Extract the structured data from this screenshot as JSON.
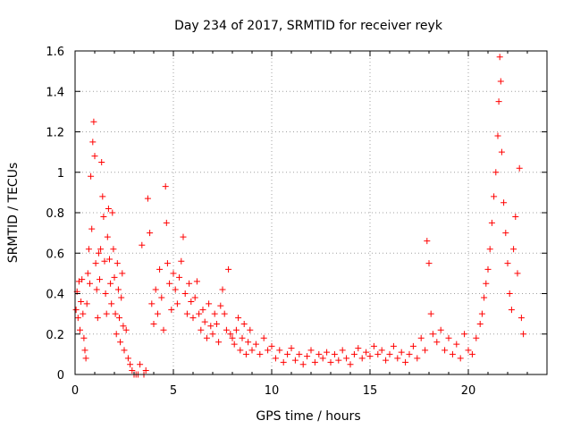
{
  "chart_data": {
    "type": "scatter",
    "title": "Day 234 of 2017, SRMTID for receiver reyk",
    "xlabel": "GPS time / hours",
    "ylabel": "SRMTID / TECUs",
    "xlim": [
      0,
      24
    ],
    "ylim": [
      0,
      1.6
    ],
    "x_ticks": [
      0,
      5,
      10,
      15,
      20
    ],
    "x_tick_labels": [
      "0",
      "5",
      "10",
      "15",
      "20"
    ],
    "y_ticks": [
      0,
      0.2,
      0.4,
      0.6,
      0.8,
      1,
      1.2,
      1.4,
      1.6
    ],
    "y_tick_labels": [
      "0",
      "0.2",
      "0.4",
      "0.6",
      "0.8",
      "1",
      "1.2",
      "1.4",
      "1.6"
    ],
    "grid": true,
    "marker": "+",
    "color": "#ff0000",
    "series": [
      {
        "name": "SRMTID",
        "points": [
          [
            0.05,
            0.32
          ],
          [
            0.1,
            0.41
          ],
          [
            0.15,
            0.28
          ],
          [
            0.2,
            0.46
          ],
          [
            0.25,
            0.22
          ],
          [
            0.3,
            0.36
          ],
          [
            0.35,
            0.47
          ],
          [
            0.4,
            0.3
          ],
          [
            0.45,
            0.18
          ],
          [
            0.5,
            0.12
          ],
          [
            0.55,
            0.08
          ],
          [
            0.6,
            0.35
          ],
          [
            0.65,
            0.5
          ],
          [
            0.7,
            0.62
          ],
          [
            0.75,
            0.45
          ],
          [
            0.8,
            0.98
          ],
          [
            0.85,
            0.72
          ],
          [
            0.9,
            1.15
          ],
          [
            0.95,
            1.25
          ],
          [
            1.0,
            1.08
          ],
          [
            1.05,
            0.55
          ],
          [
            1.1,
            0.42
          ],
          [
            1.15,
            0.28
          ],
          [
            1.2,
            0.6
          ],
          [
            1.25,
            0.47
          ],
          [
            1.3,
            0.62
          ],
          [
            1.35,
            1.05
          ],
          [
            1.4,
            0.88
          ],
          [
            1.45,
            0.78
          ],
          [
            1.5,
            0.56
          ],
          [
            1.55,
            0.4
          ],
          [
            1.6,
            0.3
          ],
          [
            1.65,
            0.68
          ],
          [
            1.7,
            0.82
          ],
          [
            1.75,
            0.57
          ],
          [
            1.8,
            0.45
          ],
          [
            1.85,
            0.35
          ],
          [
            1.9,
            0.8
          ],
          [
            1.95,
            0.62
          ],
          [
            2.0,
            0.48
          ],
          [
            2.05,
            0.3
          ],
          [
            2.1,
            0.2
          ],
          [
            2.15,
            0.55
          ],
          [
            2.2,
            0.42
          ],
          [
            2.25,
            0.28
          ],
          [
            2.3,
            0.16
          ],
          [
            2.35,
            0.38
          ],
          [
            2.4,
            0.5
          ],
          [
            2.45,
            0.24
          ],
          [
            2.5,
            0.12
          ],
          [
            2.6,
            0.22
          ],
          [
            2.7,
            0.08
          ],
          [
            2.8,
            0.05
          ],
          [
            2.9,
            0.02
          ],
          [
            3.0,
            0.0
          ],
          [
            3.1,
            0.0
          ],
          [
            3.2,
            0.0
          ],
          [
            3.3,
            0.05
          ],
          [
            3.4,
            0.64
          ],
          [
            3.5,
            0.0
          ],
          [
            3.6,
            0.02
          ],
          [
            3.7,
            0.87
          ],
          [
            3.8,
            0.7
          ],
          [
            3.9,
            0.35
          ],
          [
            4.0,
            0.25
          ],
          [
            4.1,
            0.42
          ],
          [
            4.2,
            0.3
          ],
          [
            4.3,
            0.52
          ],
          [
            4.4,
            0.38
          ],
          [
            4.5,
            0.22
          ],
          [
            4.6,
            0.93
          ],
          [
            4.65,
            0.75
          ],
          [
            4.7,
            0.55
          ],
          [
            4.8,
            0.45
          ],
          [
            4.9,
            0.32
          ],
          [
            5.0,
            0.5
          ],
          [
            5.1,
            0.42
          ],
          [
            5.2,
            0.35
          ],
          [
            5.3,
            0.48
          ],
          [
            5.4,
            0.56
          ],
          [
            5.5,
            0.68
          ],
          [
            5.6,
            0.4
          ],
          [
            5.7,
            0.3
          ],
          [
            5.8,
            0.45
          ],
          [
            5.9,
            0.36
          ],
          [
            6.0,
            0.28
          ],
          [
            6.1,
            0.38
          ],
          [
            6.2,
            0.46
          ],
          [
            6.3,
            0.3
          ],
          [
            6.4,
            0.22
          ],
          [
            6.5,
            0.32
          ],
          [
            6.6,
            0.26
          ],
          [
            6.7,
            0.18
          ],
          [
            6.8,
            0.35
          ],
          [
            6.9,
            0.24
          ],
          [
            7.0,
            0.2
          ],
          [
            7.1,
            0.3
          ],
          [
            7.2,
            0.25
          ],
          [
            7.3,
            0.16
          ],
          [
            7.4,
            0.34
          ],
          [
            7.5,
            0.42
          ],
          [
            7.6,
            0.3
          ],
          [
            7.7,
            0.22
          ],
          [
            7.8,
            0.52
          ],
          [
            7.9,
            0.2
          ],
          [
            8.0,
            0.18
          ],
          [
            8.1,
            0.15
          ],
          [
            8.2,
            0.22
          ],
          [
            8.3,
            0.28
          ],
          [
            8.4,
            0.12
          ],
          [
            8.5,
            0.18
          ],
          [
            8.6,
            0.25
          ],
          [
            8.7,
            0.1
          ],
          [
            8.8,
            0.16
          ],
          [
            8.9,
            0.22
          ],
          [
            9.0,
            0.12
          ],
          [
            9.2,
            0.15
          ],
          [
            9.4,
            0.1
          ],
          [
            9.6,
            0.18
          ],
          [
            9.8,
            0.12
          ],
          [
            10.0,
            0.14
          ],
          [
            10.2,
            0.08
          ],
          [
            10.4,
            0.12
          ],
          [
            10.6,
            0.06
          ],
          [
            10.8,
            0.1
          ],
          [
            11.0,
            0.13
          ],
          [
            11.2,
            0.07
          ],
          [
            11.4,
            0.1
          ],
          [
            11.6,
            0.05
          ],
          [
            11.8,
            0.09
          ],
          [
            12.0,
            0.12
          ],
          [
            12.2,
            0.06
          ],
          [
            12.4,
            0.1
          ],
          [
            12.6,
            0.08
          ],
          [
            12.8,
            0.11
          ],
          [
            13.0,
            0.06
          ],
          [
            13.2,
            0.1
          ],
          [
            13.4,
            0.07
          ],
          [
            13.6,
            0.12
          ],
          [
            13.8,
            0.08
          ],
          [
            14.0,
            0.05
          ],
          [
            14.2,
            0.1
          ],
          [
            14.4,
            0.13
          ],
          [
            14.6,
            0.08
          ],
          [
            14.8,
            0.11
          ],
          [
            15.0,
            0.09
          ],
          [
            15.2,
            0.14
          ],
          [
            15.4,
            0.1
          ],
          [
            15.6,
            0.12
          ],
          [
            15.8,
            0.07
          ],
          [
            16.0,
            0.1
          ],
          [
            16.2,
            0.14
          ],
          [
            16.4,
            0.08
          ],
          [
            16.6,
            0.11
          ],
          [
            16.8,
            0.06
          ],
          [
            17.0,
            0.1
          ],
          [
            17.2,
            0.14
          ],
          [
            17.4,
            0.08
          ],
          [
            17.6,
            0.18
          ],
          [
            17.8,
            0.12
          ],
          [
            17.9,
            0.66
          ],
          [
            18.0,
            0.55
          ],
          [
            18.1,
            0.3
          ],
          [
            18.2,
            0.2
          ],
          [
            18.4,
            0.16
          ],
          [
            18.6,
            0.22
          ],
          [
            18.8,
            0.12
          ],
          [
            19.0,
            0.18
          ],
          [
            19.2,
            0.1
          ],
          [
            19.4,
            0.15
          ],
          [
            19.6,
            0.08
          ],
          [
            19.8,
            0.2
          ],
          [
            20.0,
            0.12
          ],
          [
            20.2,
            0.1
          ],
          [
            20.4,
            0.18
          ],
          [
            20.6,
            0.25
          ],
          [
            20.7,
            0.3
          ],
          [
            20.8,
            0.38
          ],
          [
            20.9,
            0.45
          ],
          [
            21.0,
            0.52
          ],
          [
            21.1,
            0.62
          ],
          [
            21.2,
            0.75
          ],
          [
            21.3,
            0.88
          ],
          [
            21.4,
            1.0
          ],
          [
            21.5,
            1.18
          ],
          [
            21.55,
            1.35
          ],
          [
            21.6,
            1.57
          ],
          [
            21.65,
            1.45
          ],
          [
            21.7,
            1.1
          ],
          [
            21.8,
            0.85
          ],
          [
            21.9,
            0.7
          ],
          [
            22.0,
            0.55
          ],
          [
            22.1,
            0.4
          ],
          [
            22.2,
            0.32
          ],
          [
            22.3,
            0.62
          ],
          [
            22.4,
            0.78
          ],
          [
            22.5,
            0.5
          ],
          [
            22.6,
            1.02
          ],
          [
            22.7,
            0.28
          ],
          [
            22.8,
            0.2
          ]
        ]
      }
    ]
  }
}
